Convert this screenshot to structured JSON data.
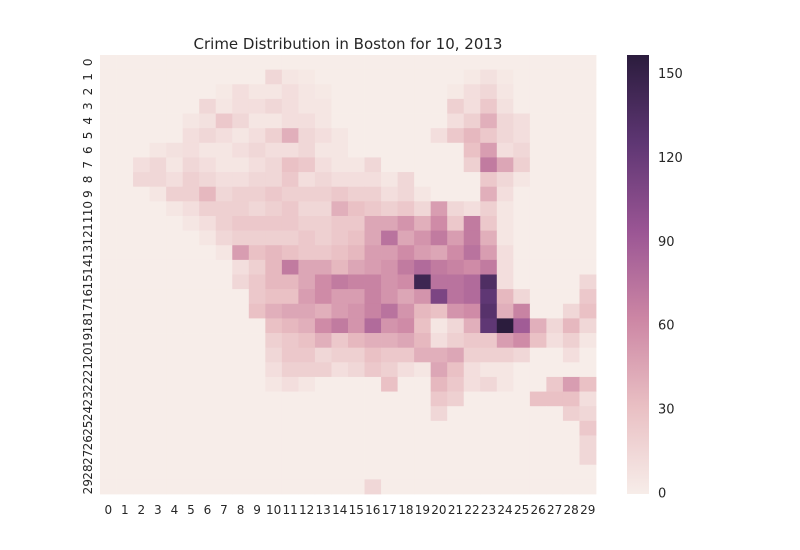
{
  "chart_data": {
    "type": "heatmap",
    "title": "Crime Distribution in Boston for 10, 2013",
    "x_labels": [
      "0",
      "1",
      "2",
      "3",
      "4",
      "5",
      "6",
      "7",
      "8",
      "9",
      "10",
      "11",
      "12",
      "13",
      "14",
      "15",
      "16",
      "17",
      "18",
      "19",
      "20",
      "21",
      "22",
      "23",
      "24",
      "25",
      "26",
      "27",
      "28",
      "29"
    ],
    "y_labels": [
      "0",
      "1",
      "2",
      "3",
      "4",
      "5",
      "6",
      "7",
      "8",
      "9",
      "10",
      "11",
      "12",
      "13",
      "14",
      "15",
      "16",
      "17",
      "18",
      "19",
      "20",
      "21",
      "22",
      "23",
      "24",
      "25",
      "26",
      "27",
      "28",
      "29"
    ],
    "colorbar": {
      "min": 0,
      "max": 157,
      "ticks": [
        0,
        30,
        60,
        90,
        120,
        150
      ],
      "tick_labels": [
        "0",
        "30",
        "60",
        "90",
        "120",
        "150"
      ],
      "colors": [
        "#f7ede9",
        "#e9bfc3",
        "#cc86a4",
        "#9a5594",
        "#5e3673",
        "#2b1c3d"
      ]
    },
    "values": [
      [
        0,
        0,
        0,
        0,
        0,
        0,
        0,
        0,
        0,
        0,
        0,
        0,
        0,
        0,
        0,
        0,
        0,
        0,
        0,
        0,
        0,
        0,
        0,
        0,
        0,
        0,
        0,
        0,
        0,
        0
      ],
      [
        0,
        0,
        0,
        0,
        0,
        0,
        0,
        0,
        0,
        0,
        15,
        5,
        3,
        0,
        0,
        0,
        0,
        0,
        0,
        0,
        0,
        0,
        3,
        8,
        3,
        0,
        0,
        0,
        0,
        0
      ],
      [
        0,
        0,
        0,
        0,
        0,
        0,
        0,
        3,
        10,
        5,
        5,
        10,
        5,
        3,
        0,
        0,
        0,
        0,
        0,
        0,
        0,
        3,
        10,
        15,
        5,
        0,
        0,
        0,
        0,
        0
      ],
      [
        0,
        0,
        0,
        0,
        0,
        0,
        15,
        5,
        10,
        10,
        15,
        10,
        5,
        5,
        0,
        0,
        0,
        0,
        0,
        0,
        0,
        20,
        10,
        25,
        8,
        0,
        0,
        0,
        0,
        0
      ],
      [
        0,
        0,
        0,
        0,
        0,
        5,
        8,
        25,
        15,
        5,
        5,
        10,
        10,
        5,
        0,
        0,
        0,
        0,
        0,
        0,
        0,
        10,
        20,
        40,
        15,
        10,
        0,
        0,
        0,
        0
      ],
      [
        0,
        0,
        0,
        0,
        0,
        10,
        15,
        10,
        5,
        10,
        20,
        40,
        15,
        10,
        5,
        0,
        0,
        0,
        0,
        0,
        10,
        25,
        35,
        25,
        15,
        10,
        0,
        0,
        0,
        0
      ],
      [
        0,
        0,
        0,
        5,
        8,
        10,
        5,
        5,
        10,
        15,
        10,
        10,
        15,
        5,
        5,
        0,
        0,
        0,
        0,
        0,
        0,
        0,
        30,
        50,
        10,
        15,
        0,
        0,
        0,
        0
      ],
      [
        0,
        0,
        10,
        15,
        5,
        15,
        10,
        5,
        5,
        10,
        15,
        30,
        25,
        10,
        5,
        5,
        15,
        0,
        0,
        0,
        0,
        0,
        20,
        70,
        45,
        20,
        0,
        0,
        0,
        0
      ],
      [
        0,
        0,
        15,
        15,
        10,
        20,
        15,
        10,
        10,
        15,
        15,
        25,
        10,
        15,
        10,
        10,
        10,
        5,
        15,
        0,
        0,
        0,
        0,
        25,
        15,
        5,
        0,
        0,
        0,
        0
      ],
      [
        0,
        0,
        0,
        5,
        20,
        20,
        35,
        15,
        20,
        20,
        25,
        20,
        20,
        20,
        25,
        20,
        20,
        10,
        15,
        5,
        0,
        0,
        0,
        40,
        10,
        0,
        0,
        0,
        0,
        0
      ],
      [
        0,
        0,
        0,
        0,
        5,
        10,
        20,
        20,
        20,
        15,
        20,
        25,
        15,
        15,
        40,
        30,
        25,
        20,
        25,
        15,
        50,
        15,
        10,
        20,
        5,
        0,
        0,
        0,
        0,
        0
      ],
      [
        0,
        0,
        0,
        0,
        0,
        5,
        10,
        20,
        25,
        25,
        25,
        25,
        20,
        20,
        25,
        25,
        45,
        45,
        55,
        40,
        60,
        25,
        70,
        25,
        5,
        0,
        0,
        0,
        0,
        0
      ],
      [
        0,
        0,
        0,
        0,
        0,
        0,
        5,
        15,
        20,
        20,
        20,
        20,
        25,
        20,
        25,
        30,
        45,
        75,
        45,
        55,
        70,
        50,
        70,
        40,
        5,
        0,
        0,
        0,
        0,
        0
      ],
      [
        0,
        0,
        0,
        0,
        0,
        0,
        0,
        5,
        50,
        30,
        35,
        30,
        25,
        25,
        30,
        35,
        50,
        50,
        60,
        50,
        45,
        60,
        75,
        50,
        10,
        0,
        0,
        0,
        0,
        0
      ],
      [
        0,
        0,
        0,
        0,
        0,
        0,
        0,
        0,
        10,
        20,
        35,
        70,
        45,
        45,
        35,
        45,
        50,
        55,
        70,
        80,
        70,
        65,
        60,
        70,
        10,
        0,
        0,
        0,
        0,
        0
      ],
      [
        0,
        0,
        0,
        0,
        0,
        0,
        0,
        0,
        15,
        25,
        35,
        35,
        45,
        60,
        70,
        65,
        65,
        55,
        60,
        145,
        75,
        75,
        80,
        135,
        10,
        0,
        0,
        0,
        0,
        15
      ],
      [
        0,
        0,
        0,
        0,
        0,
        0,
        0,
        0,
        0,
        25,
        30,
        30,
        50,
        60,
        50,
        50,
        65,
        55,
        45,
        55,
        110,
        75,
        80,
        125,
        35,
        15,
        0,
        0,
        0,
        25
      ],
      [
        0,
        0,
        0,
        0,
        0,
        0,
        0,
        0,
        0,
        30,
        40,
        45,
        45,
        40,
        50,
        55,
        65,
        75,
        55,
        35,
        30,
        55,
        60,
        130,
        40,
        65,
        0,
        0,
        15,
        30
      ],
      [
        0,
        0,
        0,
        0,
        0,
        0,
        0,
        0,
        0,
        0,
        30,
        35,
        40,
        60,
        70,
        55,
        80,
        55,
        60,
        30,
        5,
        15,
        40,
        125,
        157,
        90,
        40,
        15,
        35,
        15
      ],
      [
        0,
        0,
        0,
        0,
        0,
        0,
        0,
        0,
        0,
        0,
        20,
        25,
        30,
        40,
        25,
        35,
        40,
        40,
        45,
        35,
        10,
        20,
        25,
        25,
        50,
        60,
        30,
        10,
        20,
        5
      ],
      [
        0,
        0,
        0,
        0,
        0,
        0,
        0,
        0,
        0,
        0,
        15,
        25,
        25,
        15,
        20,
        20,
        30,
        25,
        25,
        40,
        40,
        45,
        20,
        20,
        20,
        15,
        0,
        0,
        10,
        0
      ],
      [
        0,
        0,
        0,
        0,
        0,
        0,
        0,
        0,
        0,
        0,
        10,
        20,
        20,
        20,
        10,
        15,
        25,
        20,
        10,
        5,
        45,
        30,
        10,
        5,
        5,
        0,
        0,
        0,
        0,
        0
      ],
      [
        0,
        0,
        0,
        0,
        0,
        0,
        0,
        0,
        0,
        0,
        5,
        10,
        5,
        0,
        0,
        0,
        0,
        30,
        0,
        0,
        35,
        25,
        10,
        15,
        5,
        0,
        0,
        25,
        50,
        30
      ],
      [
        0,
        0,
        0,
        0,
        0,
        0,
        0,
        0,
        0,
        0,
        0,
        0,
        0,
        0,
        0,
        0,
        0,
        0,
        0,
        0,
        25,
        20,
        0,
        0,
        0,
        0,
        30,
        30,
        30,
        10
      ],
      [
        0,
        0,
        0,
        0,
        0,
        0,
        0,
        0,
        0,
        0,
        0,
        0,
        0,
        0,
        0,
        0,
        0,
        0,
        0,
        0,
        15,
        0,
        0,
        0,
        0,
        0,
        0,
        0,
        20,
        15
      ],
      [
        0,
        0,
        0,
        0,
        0,
        0,
        0,
        0,
        0,
        0,
        0,
        0,
        0,
        0,
        0,
        0,
        0,
        0,
        0,
        0,
        0,
        0,
        0,
        0,
        0,
        0,
        0,
        0,
        0,
        25
      ],
      [
        0,
        0,
        0,
        0,
        0,
        0,
        0,
        0,
        0,
        0,
        0,
        0,
        0,
        0,
        0,
        0,
        0,
        0,
        0,
        0,
        0,
        0,
        0,
        0,
        0,
        0,
        0,
        0,
        0,
        15
      ],
      [
        0,
        0,
        0,
        0,
        0,
        0,
        0,
        0,
        0,
        0,
        0,
        0,
        0,
        0,
        0,
        0,
        0,
        0,
        0,
        0,
        0,
        0,
        0,
        0,
        0,
        0,
        0,
        0,
        0,
        15
      ],
      [
        0,
        0,
        0,
        0,
        0,
        0,
        0,
        0,
        0,
        0,
        0,
        0,
        0,
        0,
        0,
        0,
        0,
        0,
        0,
        0,
        0,
        0,
        0,
        0,
        0,
        0,
        0,
        0,
        0,
        0
      ],
      [
        0,
        0,
        0,
        0,
        0,
        0,
        0,
        0,
        0,
        0,
        0,
        0,
        0,
        0,
        0,
        0,
        15,
        0,
        0,
        0,
        0,
        0,
        0,
        0,
        0,
        0,
        0,
        0,
        0,
        0
      ]
    ]
  }
}
